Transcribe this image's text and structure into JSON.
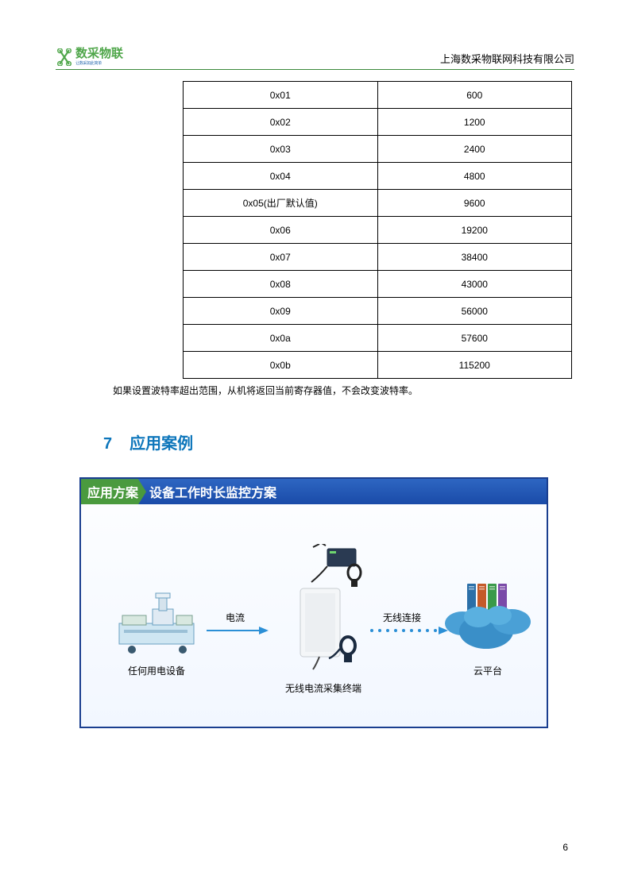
{
  "header": {
    "logo_text": "数采物联",
    "logo_sub": "让数采如此简单",
    "company": "上海数采物联网科技有限公司",
    "logo_color": "#4fa64a",
    "underline_color": "#3b8a3b"
  },
  "baud_table": {
    "rows": [
      [
        "0x01",
        "600"
      ],
      [
        "0x02",
        "1200"
      ],
      [
        "0x03",
        "2400"
      ],
      [
        "0x04",
        "4800"
      ],
      [
        "0x05(出厂默认值)",
        "9600"
      ],
      [
        "0x06",
        "19200"
      ],
      [
        "0x07",
        "38400"
      ],
      [
        "0x08",
        "43000"
      ],
      [
        "0x09",
        "56000"
      ],
      [
        "0x0a",
        "57600"
      ],
      [
        "0x0b",
        "115200"
      ]
    ]
  },
  "note_text": "如果设置波特率超出范围，从机将返回当前寄存器值，不会改变波特率。",
  "section": {
    "num": "7",
    "title": "应用案例",
    "color": "#0d76bb"
  },
  "diagram": {
    "header_tag": "应用方案",
    "header_title": "设备工作时长监控方案",
    "header_bg": "#1a4ba8",
    "tag_bg": "#4a9a3e",
    "border_color": "#1a3e8f",
    "node1_label": "任何用电设备",
    "node2_label": "无线电流采集终端",
    "node3_label": "云平台",
    "arrow1_label": "电流",
    "arrow2_label": "无线连接",
    "arrow_color": "#2b8fd6",
    "dot_color": "#2b8fd6"
  },
  "page_number": "6"
}
